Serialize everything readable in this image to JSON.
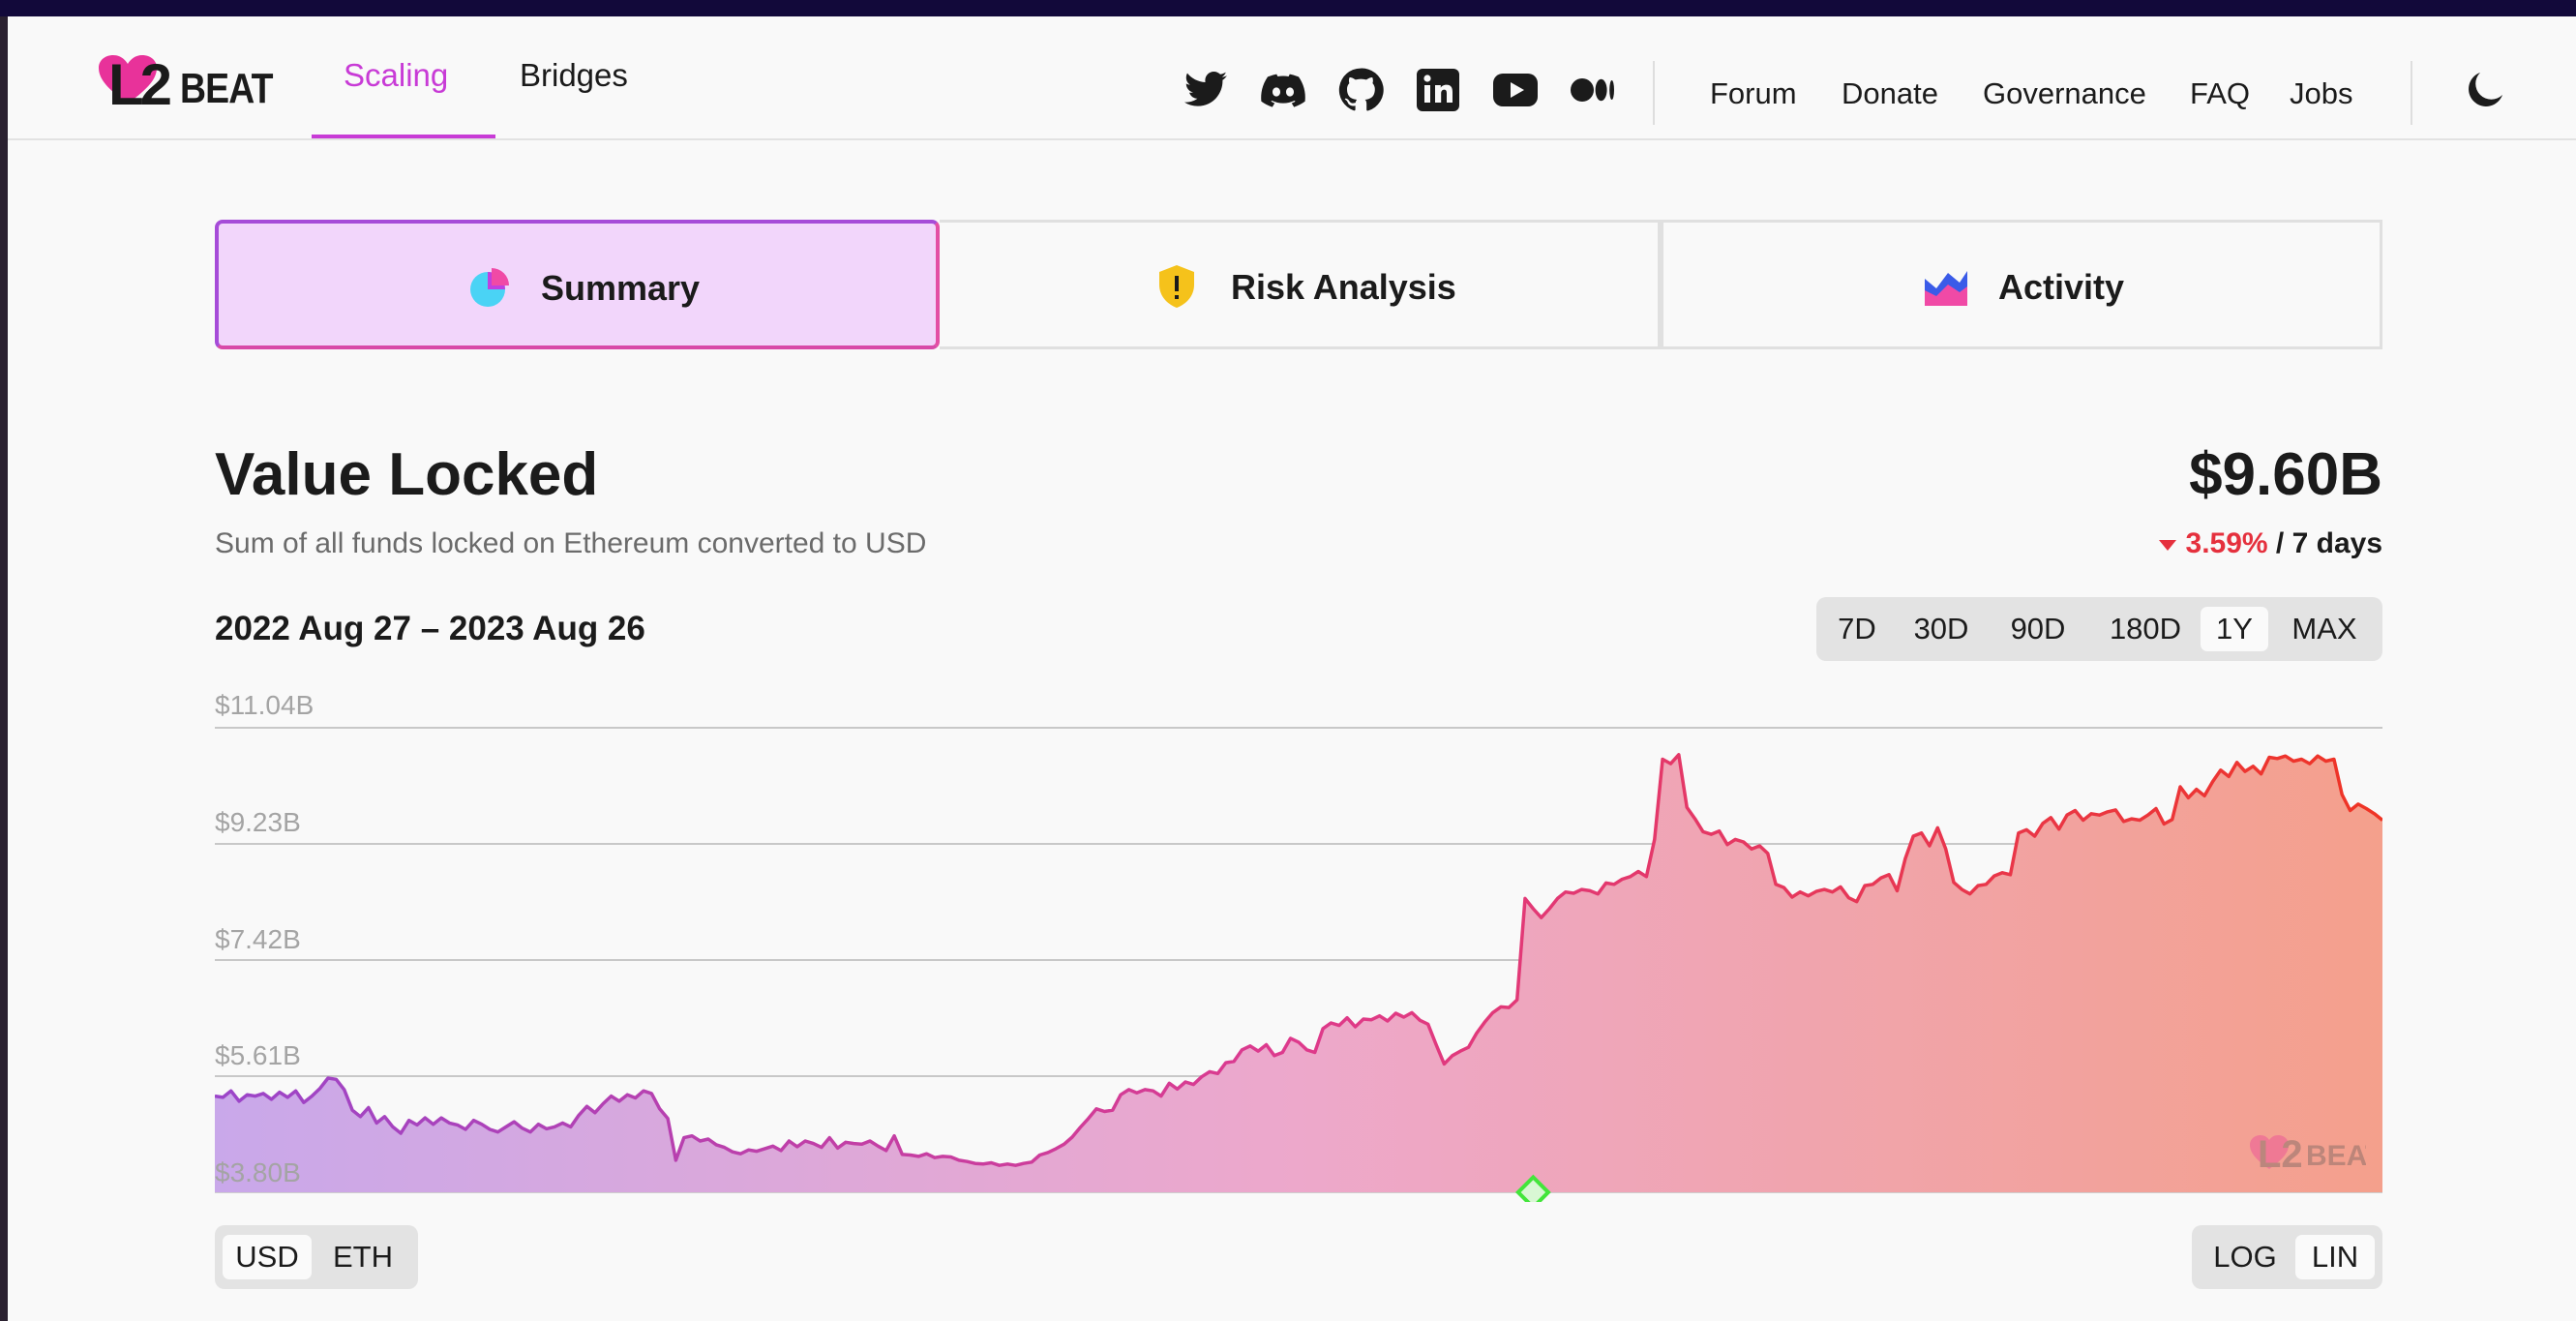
{
  "nav": {
    "primary": [
      {
        "label": "Scaling",
        "active": true
      },
      {
        "label": "Bridges",
        "active": false
      }
    ],
    "social_icons": [
      "twitter-icon",
      "discord-icon",
      "github-icon",
      "linkedin-icon",
      "youtube-icon",
      "medium-icon"
    ],
    "links": [
      "Forum",
      "Donate",
      "Governance",
      "FAQ",
      "Jobs"
    ],
    "logo_text": "BEAT",
    "theme_icon": "dark-mode-moon-icon"
  },
  "tabs": [
    {
      "label": "Summary",
      "icon": "pie-chart-icon",
      "active": true
    },
    {
      "label": "Risk Analysis",
      "icon": "shield-warning-icon",
      "active": false
    },
    {
      "label": "Activity",
      "icon": "activity-chart-icon",
      "active": false
    }
  ],
  "section": {
    "title": "Value Locked",
    "subtitle": "Sum of all funds locked on Ethereum converted to USD",
    "value": "$9.60B",
    "change": "3.59%",
    "change_period": " / 7 days",
    "date_range": "2022 Aug 27 – 2023 Aug 26"
  },
  "range_buttons": [
    {
      "label": "7D",
      "selected": false
    },
    {
      "label": "30D",
      "selected": false
    },
    {
      "label": "90D",
      "selected": false
    },
    {
      "label": "180D",
      "selected": false
    },
    {
      "label": "1Y",
      "selected": true
    },
    {
      "label": "MAX",
      "selected": false
    }
  ],
  "currency_toggle": [
    {
      "label": "USD",
      "selected": true
    },
    {
      "label": "ETH",
      "selected": false
    }
  ],
  "scale_toggle": [
    {
      "label": "LOG",
      "selected": false
    },
    {
      "label": "LIN",
      "selected": true
    }
  ],
  "colors": {
    "accent": "#c83bd6",
    "negative": "#e5303d",
    "gradient_start": "#9b52d4",
    "gradient_mid": "#e0418e",
    "gradient_end": "#f0422a",
    "milestone": "#43e53b"
  },
  "chart_data": {
    "type": "area",
    "ylabel": "",
    "y_ticks": [
      "$11.04B",
      "$9.23B",
      "$7.42B",
      "$5.61B",
      "$3.80B"
    ],
    "ylim": [
      3.8,
      11.04
    ],
    "x_range": [
      "2022-08-27",
      "2023-08-26"
    ],
    "values": [
      5.3,
      5.28,
      5.38,
      5.22,
      5.32,
      5.3,
      5.34,
      5.25,
      5.36,
      5.28,
      5.38,
      5.2,
      5.3,
      5.42,
      5.58,
      5.56,
      5.4,
      5.08,
      4.98,
      5.12,
      4.88,
      4.98,
      4.82,
      4.72,
      4.92,
      4.85,
      4.96,
      4.86,
      4.96,
      4.88,
      4.85,
      4.78,
      4.92,
      4.86,
      4.78,
      4.74,
      4.82,
      4.9,
      4.8,
      4.74,
      4.86,
      4.79,
      4.82,
      4.88,
      4.82,
      5.0,
      5.14,
      5.04,
      5.18,
      5.3,
      5.22,
      5.32,
      5.27,
      5.38,
      5.34,
      5.1,
      4.95,
      4.3,
      4.65,
      4.68,
      4.6,
      4.63,
      4.54,
      4.5,
      4.43,
      4.4,
      4.46,
      4.44,
      4.48,
      4.52,
      4.45,
      4.6,
      4.51,
      4.6,
      4.56,
      4.5,
      4.65,
      4.49,
      4.58,
      4.56,
      4.55,
      4.6,
      4.52,
      4.45,
      4.68,
      4.39,
      4.38,
      4.36,
      4.4,
      4.34,
      4.36,
      4.35,
      4.3,
      4.28,
      4.25,
      4.24,
      4.26,
      4.22,
      4.24,
      4.22,
      4.25,
      4.27,
      4.38,
      4.42,
      4.48,
      4.55,
      4.66,
      4.81,
      4.95,
      5.1,
      5.06,
      5.08,
      5.32,
      5.4,
      5.35,
      5.4,
      5.38,
      5.3,
      5.5,
      5.41,
      5.52,
      5.48,
      5.6,
      5.68,
      5.65,
      5.82,
      5.84,
      6.02,
      6.08,
      6.0,
      6.1,
      5.93,
      5.98,
      6.2,
      6.14,
      6.02,
      5.98,
      6.35,
      6.44,
      6.4,
      6.52,
      6.38,
      6.5,
      6.49,
      6.55,
      6.47,
      6.59,
      6.53,
      6.6,
      6.48,
      6.42,
      6.1,
      5.8,
      5.93,
      6.0,
      6.06,
      6.28,
      6.45,
      6.6,
      6.69,
      6.68,
      6.8,
      8.38,
      8.22,
      8.08,
      8.22,
      8.38,
      8.48,
      8.46,
      8.52,
      8.5,
      8.45,
      8.62,
      8.6,
      8.68,
      8.72,
      8.8,
      8.72,
      9.3,
      10.55,
      10.48,
      10.62,
      9.8,
      9.62,
      9.42,
      9.38,
      9.43,
      9.22,
      9.3,
      9.26,
      9.15,
      9.2,
      9.08,
      8.6,
      8.55,
      8.4,
      8.48,
      8.42,
      8.49,
      8.52,
      8.48,
      8.56,
      8.39,
      8.33,
      8.58,
      8.6,
      8.7,
      8.75,
      8.5,
      9.0,
      9.35,
      9.4,
      9.2,
      9.48,
      9.15,
      8.63,
      8.52,
      8.45,
      8.58,
      8.6,
      8.73,
      8.78,
      8.75,
      9.4,
      9.45,
      9.35,
      9.55,
      9.64,
      9.46,
      9.68,
      9.75,
      9.6,
      9.7,
      9.68,
      9.73,
      9.76,
      9.58,
      9.62,
      9.6,
      9.68,
      9.78,
      9.54,
      9.61,
      10.12,
      9.95,
      10.08,
      9.98,
      10.2,
      10.38,
      10.28,
      10.5,
      10.36,
      10.44,
      10.32,
      10.58,
      10.56,
      10.6,
      10.52,
      10.55,
      10.48,
      10.6,
      10.52,
      10.55,
      10.0,
      9.75,
      9.85,
      9.78,
      9.7,
      9.6
    ],
    "milestone_index": 163
  }
}
